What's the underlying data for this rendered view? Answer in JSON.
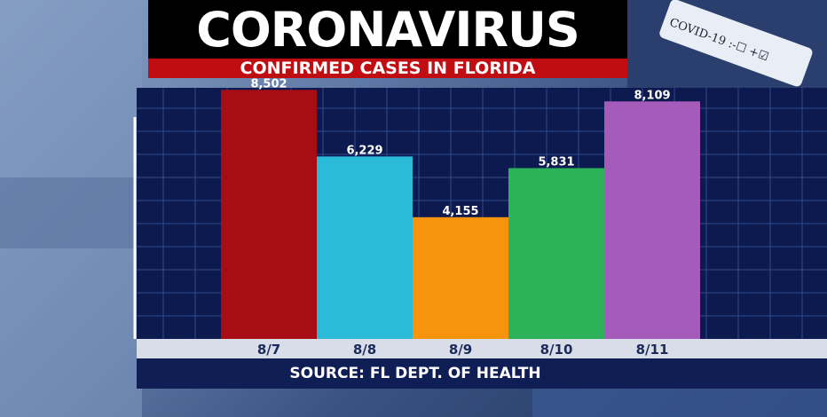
{
  "header": {
    "title": "CORONAVIRUS",
    "subtitle": "CONFIRMED CASES IN FLORIDA"
  },
  "footer": {
    "source": "SOURCE: FL DEPT. OF HEALTH"
  },
  "background": {
    "vial_label": "COVID-19 :-☐ +☑"
  },
  "colors": {
    "title_bg": "#000000",
    "subtitle_bg": "#c00d12",
    "chart_bg": "#0d1a4f",
    "grid": "#2e4a8c",
    "xaxis_bg": "#d8dde8",
    "source_bg": "#0f1f55"
  },
  "chart_data": {
    "type": "bar",
    "title": "CONFIRMED CASES IN FLORIDA",
    "categories": [
      "8/7",
      "8/8",
      "8/9",
      "8/10",
      "8/11"
    ],
    "values": [
      8502,
      6229,
      4155,
      5831,
      8109
    ],
    "value_labels": [
      "8,502",
      "6,229",
      "4,155",
      "5,831",
      "8,109"
    ],
    "bar_colors": [
      "#a80c14",
      "#2bbad8",
      "#f7940d",
      "#2cb35a",
      "#a45bb9"
    ],
    "xlabel": "",
    "ylabel": "",
    "ylim": [
      0,
      9000
    ],
    "grid": true,
    "legend": "none"
  }
}
